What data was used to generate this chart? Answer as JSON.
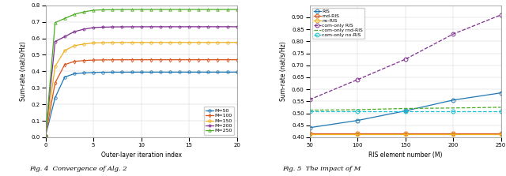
{
  "fig4": {
    "xlabel": "Outer-layer iteration index",
    "ylabel": "Sum-rate (nat/s/Hz)",
    "xlim": [
      0,
      20
    ],
    "ylim": [
      0,
      0.8
    ],
    "yticks": [
      0.0,
      0.1,
      0.2,
      0.3,
      0.4,
      0.5,
      0.6,
      0.7,
      0.8
    ],
    "xticks": [
      0,
      5,
      10,
      15,
      20
    ],
    "series": [
      {
        "label": "M=50",
        "color": "#1f77b4",
        "marker": "o",
        "converge": 0.395,
        "rise_iters": [
          0,
          1,
          2,
          3,
          4,
          5
        ],
        "rise_vals": [
          0.01,
          0.24,
          0.365,
          0.385,
          0.39,
          0.393
        ]
      },
      {
        "label": "M=100",
        "color": "#d95319",
        "marker": "d",
        "converge": 0.47,
        "rise_iters": [
          0,
          1,
          2,
          3,
          4,
          5
        ],
        "rise_vals": [
          0.01,
          0.33,
          0.44,
          0.46,
          0.465,
          0.468
        ]
      },
      {
        "label": "M=150",
        "color": "#edb120",
        "marker": "o",
        "converge": 0.575,
        "rise_iters": [
          0,
          1,
          2,
          3,
          4,
          5
        ],
        "rise_vals": [
          0.01,
          0.43,
          0.525,
          0.555,
          0.565,
          0.572
        ]
      },
      {
        "label": "M=200",
        "color": "#7e2f8e",
        "marker": "p",
        "converge": 0.67,
        "rise_iters": [
          0,
          1,
          2,
          3,
          4,
          5
        ],
        "rise_vals": [
          0.01,
          0.58,
          0.61,
          0.64,
          0.655,
          0.665
        ]
      },
      {
        "label": "M=250",
        "color": "#4dac26",
        "marker": "^",
        "converge": 0.775,
        "rise_iters": [
          0,
          1,
          2,
          3,
          4,
          5
        ],
        "rise_vals": [
          0.01,
          0.695,
          0.72,
          0.745,
          0.76,
          0.77
        ]
      }
    ]
  },
  "fig5": {
    "xlabel": "RIS element number (M)",
    "ylabel": "Sum-rate (nat/s/Hz)",
    "xlim": [
      50,
      250
    ],
    "ylim": [
      0.4,
      0.95
    ],
    "yticks": [
      0.4,
      0.45,
      0.5,
      0.55,
      0.6,
      0.65,
      0.7,
      0.75,
      0.8,
      0.85,
      0.9
    ],
    "xticks": [
      50,
      100,
      150,
      200,
      250
    ],
    "series": [
      {
        "label": "RIS",
        "color": "#1f77b4",
        "marker": "o",
        "linestyle": "-",
        "x": [
          50,
          100,
          150,
          200,
          250
        ],
        "y": [
          0.44,
          0.47,
          0.51,
          0.555,
          0.585
        ]
      },
      {
        "label": "rnd-RIS",
        "color": "#d95319",
        "marker": "o",
        "linestyle": "-",
        "x": [
          50,
          100,
          150,
          200,
          250
        ],
        "y": [
          0.415,
          0.415,
          0.415,
          0.415,
          0.415
        ]
      },
      {
        "label": "no-RIS",
        "color": "#edb120",
        "marker": "o",
        "linestyle": "-",
        "x": [
          50,
          100,
          150,
          200,
          250
        ],
        "y": [
          0.412,
          0.412,
          0.412,
          0.412,
          0.412
        ]
      },
      {
        "label": "com-only RIS",
        "color": "#7e2f8e",
        "marker": "o",
        "linestyle": "--",
        "x": [
          50,
          100,
          150,
          200,
          250
        ],
        "y": [
          0.557,
          0.64,
          0.725,
          0.83,
          0.91
        ]
      },
      {
        "label": "com-only rnd-RIS",
        "color": "#4dac26",
        "marker": "none",
        "linestyle": "--",
        "x": [
          50,
          100,
          150,
          200,
          250
        ],
        "y": [
          0.513,
          0.515,
          0.52,
          0.522,
          0.525
        ]
      },
      {
        "label": "com-only no-RIS",
        "color": "#17becf",
        "marker": "o",
        "linestyle": "--",
        "x": [
          50,
          100,
          150,
          200,
          250
        ],
        "y": [
          0.508,
          0.508,
          0.508,
          0.508,
          0.508
        ]
      }
    ]
  },
  "caption4": "Fig. 4  Convergence of Alg. 2",
  "caption5": "Fig. 5  The impact of M"
}
